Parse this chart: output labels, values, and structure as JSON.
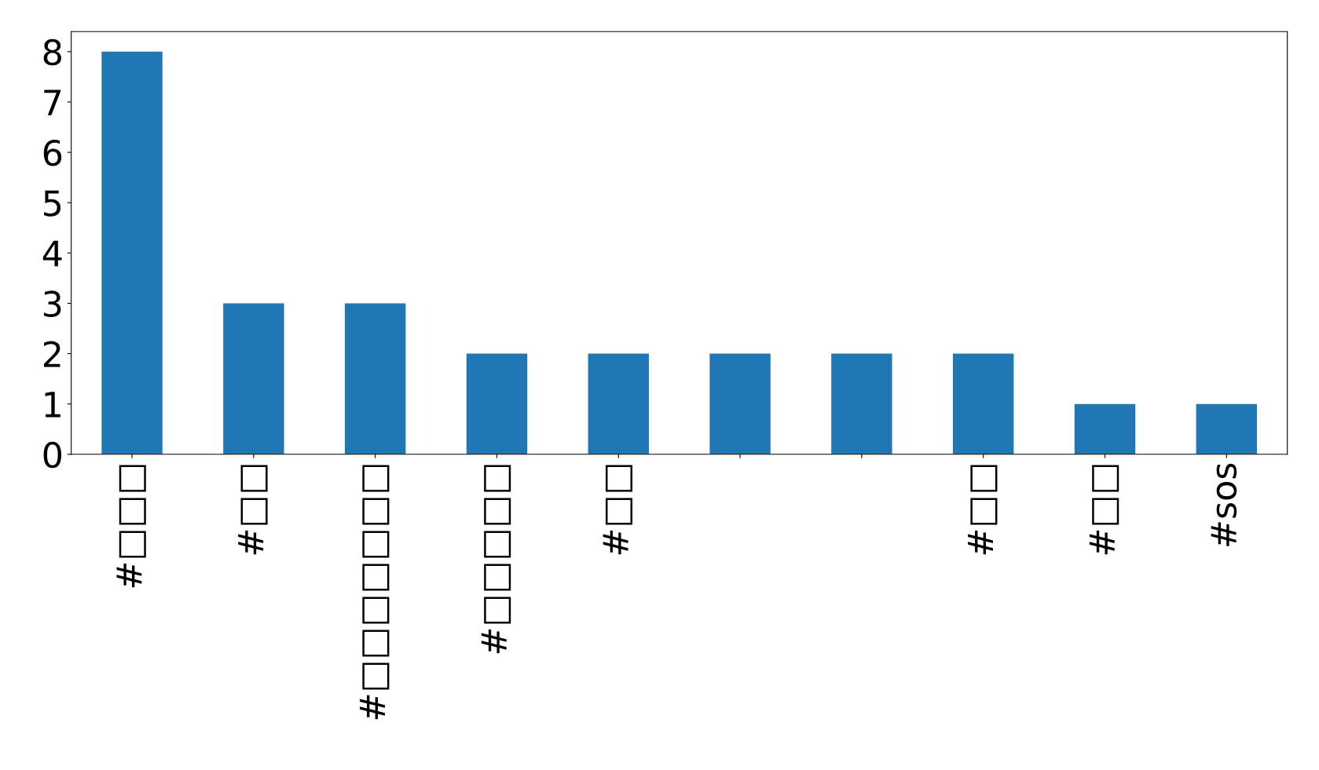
{
  "chart_data": {
    "type": "bar",
    "categories": [
      "#□□□",
      "#□□",
      "#□□□□□□□",
      "#□□□□□",
      "#□□",
      null,
      null,
      "#□□",
      "#□□",
      "#sos"
    ],
    "values": [
      8,
      3,
      3,
      2,
      2,
      2,
      2,
      2,
      1,
      1
    ],
    "color": "#1f77b4",
    "ylim": [
      0,
      8.4
    ],
    "yticks": [
      0,
      1,
      2,
      3,
      4,
      5,
      6,
      7,
      8
    ],
    "grid": false
  }
}
